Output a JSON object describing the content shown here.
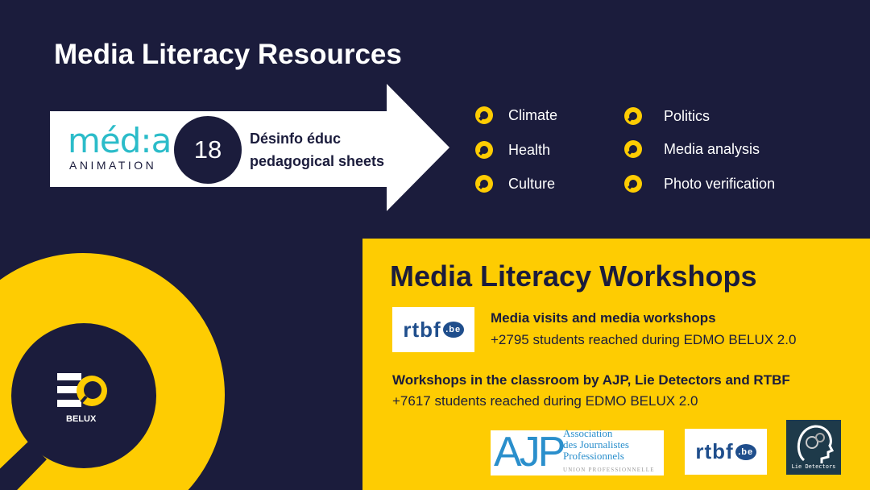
{
  "resources": {
    "title": "Media Literacy Resources",
    "logo": {
      "word": "méd:a",
      "sub": "ANIMATION"
    },
    "count": "18",
    "sheets_line1": "Désinfo éduc",
    "sheets_line2": "pedagogical sheets",
    "topics": [
      "Climate",
      "Health",
      "Culture",
      "Politics",
      "Media analysis",
      "Photo verification"
    ]
  },
  "workshops": {
    "title": "Media Literacy Workshops",
    "item1_title": "Media visits and media workshops",
    "item1_text": "+2795 students reached during EDMO BELUX 2.0",
    "item2_title": "Workshops in the classroom by AJP, Lie Detectors and RTBF",
    "item2_text": "+7617 students reached during EDMO BELUX 2.0"
  },
  "logos": {
    "rtbf": "rtbf",
    "rtbf_be": ".be",
    "ajp": "AJP",
    "ajp_lines": [
      "Association",
      "des Journalistes",
      "Professionnels"
    ],
    "ajp_union": "UNION PROFESSIONNELLE",
    "lie": "Lie Detectors",
    "edmo": "BELUX"
  },
  "colors": {
    "navy": "#1b1c3c",
    "yellow": "#fecc02",
    "teal": "#2bbcc9",
    "rtbf_blue": "#1f4e8c"
  }
}
